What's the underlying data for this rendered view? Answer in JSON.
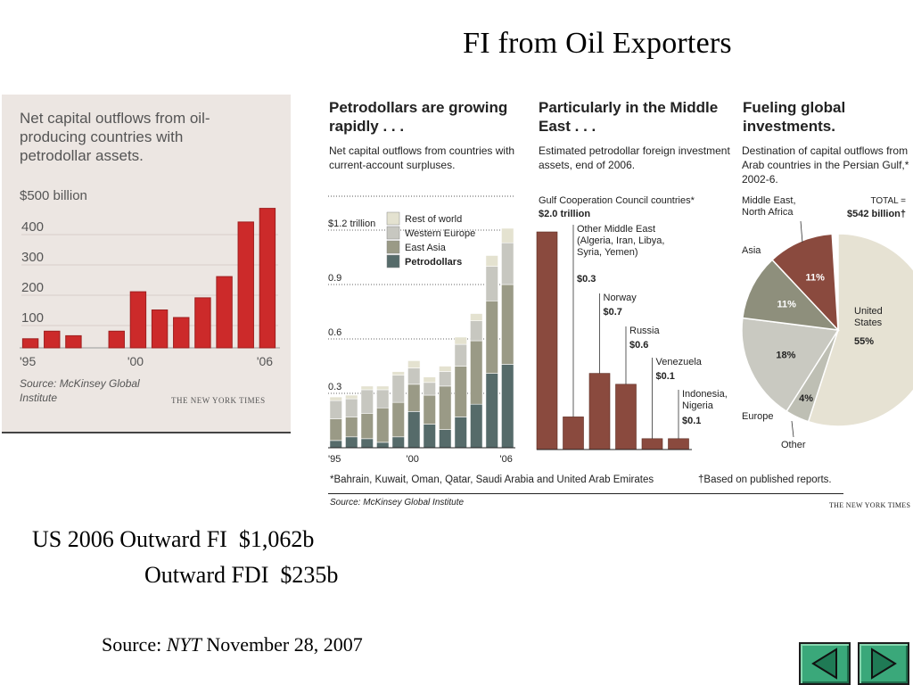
{
  "slide": {
    "title": "FI from Oil Exporters",
    "us_line1": "US 2006 Outward FI  $1,062b",
    "us_line2": "Outward FDI  $235b",
    "source_prefix": "Source: ",
    "source_pub": "NYT",
    "source_date": " November 28, 2007"
  },
  "nav": {
    "prev_icon": "triangle-left-icon",
    "next_icon": "triangle-right-icon"
  },
  "chart_data": [
    {
      "type": "bar",
      "title": "Net capital outflows from oil-producing countries with petrodollar assets.",
      "ylabel": "$500 billion",
      "y_ticks": [
        "400",
        "300",
        "200",
        "100"
      ],
      "x_tick_labels": [
        "'95",
        "'00",
        "'06"
      ],
      "categories": [
        "1995",
        "1996",
        "1997",
        "1998",
        "1999",
        "2000",
        "2001",
        "2002",
        "2003",
        "2004",
        "2005",
        "2006"
      ],
      "values": [
        30,
        55,
        40,
        0,
        55,
        185,
        125,
        100,
        165,
        235,
        415,
        460
      ],
      "ylim": [
        0,
        500
      ],
      "color": "#cc2a2a",
      "source": "Source: McKinsey Global Institute",
      "brand": "THE NEW YORK TIMES"
    },
    {
      "type": "bar",
      "stacked": true,
      "title": "Petrodollars are growing rapidly . . .",
      "subtitle": "Net capital outflows from countries with current-account surpluses.",
      "y_ticks": [
        "$1.2 trillion",
        "0.9",
        "0.6",
        "0.3"
      ],
      "x_tick_labels": [
        "'95",
        "'00",
        "'06"
      ],
      "categories": [
        "1995",
        "1996",
        "1997",
        "1998",
        "1999",
        "2000",
        "2001",
        "2002",
        "2003",
        "2004",
        "2005",
        "2006"
      ],
      "ylim": [
        0,
        1.3
      ],
      "series": [
        {
          "name": "Petrodollars",
          "color": "#566b6a",
          "values": [
            0.04,
            0.06,
            0.05,
            0.03,
            0.06,
            0.2,
            0.13,
            0.1,
            0.17,
            0.24,
            0.41,
            0.46
          ]
        },
        {
          "name": "East Asia",
          "color": "#9a9a86",
          "values": [
            0.12,
            0.11,
            0.14,
            0.19,
            0.19,
            0.15,
            0.16,
            0.24,
            0.28,
            0.35,
            0.4,
            0.44
          ]
        },
        {
          "name": "Western Europe",
          "color": "#c7c7c0",
          "values": [
            0.1,
            0.1,
            0.13,
            0.1,
            0.15,
            0.09,
            0.07,
            0.08,
            0.12,
            0.11,
            0.19,
            0.23
          ]
        },
        {
          "name": "Rest of world",
          "color": "#e4e2d0",
          "values": [
            0.02,
            0.02,
            0.02,
            0.02,
            0.02,
            0.04,
            0.03,
            0.03,
            0.04,
            0.04,
            0.06,
            0.08
          ]
        }
      ]
    },
    {
      "type": "bar",
      "title": "Particularly in the Middle East . . .",
      "subtitle": "Estimated petrodollar foreign investment assets, end of 2006.",
      "ylim": [
        0,
        2.0
      ],
      "color": "#8a4a3e",
      "bars": [
        {
          "label": "Gulf Cooperation Council countries*",
          "value_label": "$2.0 trillion",
          "value": 2.0
        },
        {
          "label": "Other Middle East (Algeria, Iran, Libya, Syria, Yemen)",
          "value_label": "$0.3",
          "value": 0.3
        },
        {
          "label": "Norway",
          "value_label": "$0.7",
          "value": 0.7
        },
        {
          "label": "Russia",
          "value_label": "$0.6",
          "value": 0.6
        },
        {
          "label": "Venezuela",
          "value_label": "$0.1",
          "value": 0.1
        },
        {
          "label": "Indonesia, Nigeria",
          "value_label": "$0.1",
          "value": 0.1
        }
      ]
    },
    {
      "type": "pie",
      "title": "Fueling global investments.",
      "subtitle": "Destination of capital outflows from Arab countries in the Persian Gulf,* 2002-6.",
      "total_label": "TOTAL =",
      "total_value": "$542 billion†",
      "slices": [
        {
          "name": "United States",
          "pct": 55,
          "label": "55%",
          "color": "#e6e2d3"
        },
        {
          "name": "Other",
          "pct": 4,
          "label": "4%",
          "color": "#bebfb4"
        },
        {
          "name": "Europe",
          "pct": 18,
          "label": "18%",
          "color": "#c9c9c1"
        },
        {
          "name": "Asia",
          "pct": 11,
          "label": "11%",
          "color": "#8e8f7c"
        },
        {
          "name": "Middle East, North Africa",
          "pct": 11,
          "label": "11%",
          "color": "#8a4a3e"
        }
      ]
    }
  ],
  "footnotes": {
    "gcc": "*Bahrain, Kuwait, Oman, Qatar, Saudi Arabia and United Arab Emirates",
    "reports": "†Based on published reports.",
    "source": "Source: McKinsey Global Institute",
    "brand": "THE NEW YORK TIMES"
  }
}
